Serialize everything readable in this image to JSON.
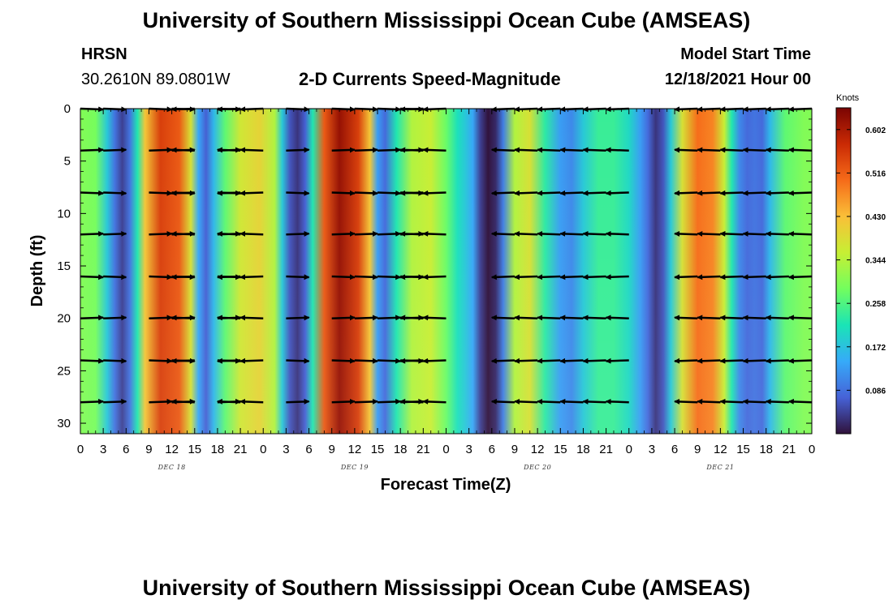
{
  "header": {
    "title": "University of Southern Mississippi Ocean Cube (AMSEAS)",
    "station": "HRSN",
    "location": "30.2610N  89.0801W",
    "chart_title": "2-D Currents Speed-Magnitude",
    "model_start_label": "Model Start Time",
    "model_start_value": "12/18/2021 Hour 00",
    "footer_title": "University of Southern Mississippi Ocean Cube (AMSEAS)"
  },
  "colors": {
    "colormap": [
      "#30123b",
      "#4662d7",
      "#36aaf9",
      "#1ae4b6",
      "#72fe5e",
      "#c7ef34",
      "#fabf38",
      "#f66b19",
      "#ca2a04",
      "#7a0403"
    ],
    "vector": "#000000"
  },
  "chart_data": {
    "type": "heatmap",
    "title": "2-D Currents Speed-Magnitude",
    "xlabel": "Forecast Time(Z)",
    "ylabel": "Depth (ft)",
    "x_ticks": [
      "0",
      "3",
      "6",
      "9",
      "12",
      "15",
      "18",
      "21",
      "0",
      "3",
      "6",
      "9",
      "12",
      "15",
      "18",
      "21",
      "0",
      "3",
      "6",
      "9",
      "12",
      "15",
      "18",
      "21",
      "0",
      "3",
      "6",
      "9",
      "12",
      "15",
      "18",
      "21",
      "0"
    ],
    "day_labels": [
      "DEC 18",
      "DEC 19",
      "DEC 20",
      "DEC 21"
    ],
    "x_range_hours": [
      0,
      96
    ],
    "y_ticks": [
      "0",
      "5",
      "10",
      "15",
      "20",
      "25",
      "30"
    ],
    "ylim_ft": [
      0,
      31
    ],
    "colorbar_label": "Knots",
    "colorbar_ticks": [
      "0.602",
      "0.516",
      "0.430",
      "0.344",
      "0.258",
      "0.172",
      "0.086"
    ],
    "colorbar_range": [
      0,
      0.645
    ],
    "vector_depths_ft": [
      0,
      4,
      8,
      12,
      16,
      20,
      24,
      28
    ],
    "speed_profile_knots": [
      {
        "hour": 0,
        "value": 0.3
      },
      {
        "hour": 2,
        "value": 0.29
      },
      {
        "hour": 3.5,
        "value": 0.18
      },
      {
        "hour": 4.5,
        "value": 0.09
      },
      {
        "hour": 5.5,
        "value": 0.04
      },
      {
        "hour": 6.5,
        "value": 0.09
      },
      {
        "hour": 7.5,
        "value": 0.22
      },
      {
        "hour": 8.5,
        "value": 0.42
      },
      {
        "hour": 10.5,
        "value": 0.55
      },
      {
        "hour": 13,
        "value": 0.52
      },
      {
        "hour": 14.5,
        "value": 0.38
      },
      {
        "hour": 15.5,
        "value": 0.14
      },
      {
        "hour": 16.5,
        "value": 0.07
      },
      {
        "hour": 17.5,
        "value": 0.16
      },
      {
        "hour": 19,
        "value": 0.27
      },
      {
        "hour": 21,
        "value": 0.37
      },
      {
        "hour": 23.5,
        "value": 0.4
      },
      {
        "hour": 25.5,
        "value": 0.34
      },
      {
        "hour": 26.5,
        "value": 0.18
      },
      {
        "hour": 27.5,
        "value": 0.06
      },
      {
        "hour": 28.5,
        "value": 0.03
      },
      {
        "hour": 29.5,
        "value": 0.07
      },
      {
        "hour": 30.5,
        "value": 0.22
      },
      {
        "hour": 32,
        "value": 0.52
      },
      {
        "hour": 34,
        "value": 0.62
      },
      {
        "hour": 36.5,
        "value": 0.55
      },
      {
        "hour": 38,
        "value": 0.42
      },
      {
        "hour": 39,
        "value": 0.13
      },
      {
        "hour": 40,
        "value": 0.08
      },
      {
        "hour": 41.5,
        "value": 0.22
      },
      {
        "hour": 43.5,
        "value": 0.34
      },
      {
        "hour": 46,
        "value": 0.36
      },
      {
        "hour": 48,
        "value": 0.28
      },
      {
        "hour": 49.5,
        "value": 0.21
      },
      {
        "hour": 50.5,
        "value": 0.18
      },
      {
        "hour": 51.5,
        "value": 0.14
      },
      {
        "hour": 52.5,
        "value": 0.04
      },
      {
        "hour": 53.5,
        "value": 0.0
      },
      {
        "hour": 54.5,
        "value": 0.02
      },
      {
        "hour": 55.5,
        "value": 0.1
      },
      {
        "hour": 57,
        "value": 0.34
      },
      {
        "hour": 59,
        "value": 0.38
      },
      {
        "hour": 61,
        "value": 0.23
      },
      {
        "hour": 63,
        "value": 0.13
      },
      {
        "hour": 64.5,
        "value": 0.11
      },
      {
        "hour": 66,
        "value": 0.18
      },
      {
        "hour": 68,
        "value": 0.24
      },
      {
        "hour": 70,
        "value": 0.24
      },
      {
        "hour": 72,
        "value": 0.2
      },
      {
        "hour": 73.5,
        "value": 0.13
      },
      {
        "hour": 74.5,
        "value": 0.08
      },
      {
        "hour": 75.5,
        "value": 0.03
      },
      {
        "hour": 76.5,
        "value": 0.06
      },
      {
        "hour": 77.5,
        "value": 0.18
      },
      {
        "hour": 79,
        "value": 0.38
      },
      {
        "hour": 81,
        "value": 0.5
      },
      {
        "hour": 83,
        "value": 0.48
      },
      {
        "hour": 84.5,
        "value": 0.36
      },
      {
        "hour": 85.5,
        "value": 0.22
      },
      {
        "hour": 86.5,
        "value": 0.11
      },
      {
        "hour": 87.5,
        "value": 0.08
      },
      {
        "hour": 88.5,
        "value": 0.09
      },
      {
        "hour": 89.5,
        "value": 0.08
      },
      {
        "hour": 90.5,
        "value": 0.16
      },
      {
        "hour": 92.5,
        "value": 0.27
      },
      {
        "hour": 95,
        "value": 0.3
      },
      {
        "hour": 96,
        "value": 0.3
      }
    ],
    "vector_hours": [
      0,
      3,
      9,
      12,
      15,
      18,
      21,
      24,
      27,
      33,
      36,
      39,
      42,
      45,
      48,
      57,
      60,
      63,
      66,
      69,
      72,
      81,
      84,
      87,
      90,
      93,
      96
    ],
    "vector_directions": [
      "east",
      "east",
      "east",
      "east",
      "west",
      "east",
      "west",
      "west",
      "east",
      "east",
      "east",
      "east",
      "east",
      "west",
      "west",
      "west",
      "west",
      "west",
      "west",
      "west",
      "west",
      "west",
      "west",
      "west",
      "west",
      "west",
      "west"
    ]
  }
}
